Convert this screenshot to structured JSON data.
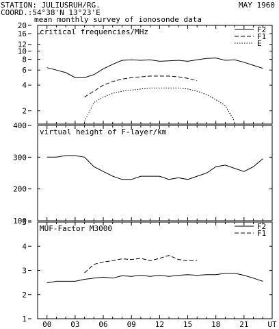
{
  "header": {
    "station": "STATION: JULIUSRUH/RG.",
    "date": "MAY 1960",
    "coord": "COORD.:54°38'N 13°23'E",
    "subtitle": "mean monthly survey of ionosonde data"
  },
  "chart_data": [
    {
      "type": "line",
      "title": "critical frequencies/MHz",
      "yscale": "log",
      "ylim": [
        1.4,
        20
      ],
      "xlim": [
        -1,
        24
      ],
      "yticks": [
        "20",
        "16",
        "12",
        "10",
        "8",
        "6",
        "4",
        "2"
      ],
      "ytick_values": [
        20,
        16,
        12,
        10,
        8,
        6,
        4,
        2
      ],
      "legend_position": "top-right",
      "series": [
        {
          "name": "F2",
          "style": "solid",
          "x": [
            0,
            1,
            2,
            3,
            4,
            5,
            6,
            7,
            8,
            9,
            10,
            11,
            12,
            13,
            14,
            15,
            16,
            17,
            18,
            19,
            20,
            21,
            22,
            23
          ],
          "y": [
            6.4,
            6.0,
            5.6,
            4.9,
            4.9,
            5.3,
            6.2,
            7.0,
            7.8,
            7.9,
            7.8,
            7.9,
            7.6,
            7.7,
            7.8,
            7.6,
            7.9,
            8.2,
            8.3,
            7.8,
            7.9,
            7.4,
            6.8,
            6.3
          ]
        },
        {
          "name": "F1",
          "style": "dashed",
          "x": [
            4,
            5,
            6,
            7,
            8,
            9,
            10,
            11,
            12,
            13,
            14,
            15,
            16
          ],
          "y": [
            2.9,
            3.4,
            4.0,
            4.4,
            4.7,
            4.9,
            5.0,
            5.1,
            5.1,
            5.1,
            5.0,
            4.8,
            4.5
          ]
        },
        {
          "name": "E",
          "style": "dotted",
          "x": [
            4,
            5,
            6,
            7,
            8,
            9,
            10,
            11,
            12,
            13,
            14,
            15,
            16,
            17,
            18,
            19,
            20
          ],
          "y": [
            1.5,
            2.5,
            2.9,
            3.2,
            3.4,
            3.5,
            3.6,
            3.7,
            3.7,
            3.7,
            3.7,
            3.6,
            3.4,
            3.1,
            2.7,
            2.3,
            1.5
          ]
        }
      ]
    },
    {
      "type": "line",
      "title": "virtual height of F-layer/km",
      "ylim": [
        100,
        400
      ],
      "xlim": [
        -1,
        24
      ],
      "yticks": [
        "400",
        "300",
        "200",
        "100"
      ],
      "ytick_values": [
        400,
        300,
        200,
        100
      ],
      "series": [
        {
          "style": "solid",
          "x": [
            0,
            1,
            2,
            3,
            4,
            5,
            6,
            7,
            8,
            9,
            10,
            11,
            12,
            13,
            14,
            15,
            16,
            17,
            18,
            19,
            20,
            21,
            22,
            23
          ],
          "y": [
            300,
            300,
            305,
            305,
            300,
            270,
            255,
            240,
            230,
            230,
            240,
            240,
            240,
            230,
            235,
            230,
            240,
            250,
            270,
            275,
            265,
            255,
            270,
            295
          ]
        }
      ]
    },
    {
      "type": "line",
      "title": "MUF-Factor M3000",
      "ylim": [
        1,
        5
      ],
      "xlim": [
        -1,
        24
      ],
      "yticks": [
        "5",
        "4",
        "3",
        "2",
        "1"
      ],
      "ytick_values": [
        5,
        4,
        3,
        2,
        1
      ],
      "xticks": [
        "00",
        "03",
        "06",
        "09",
        "12",
        "15",
        "18",
        "21",
        "UT"
      ],
      "legend_position": "top-right",
      "series": [
        {
          "name": "F2",
          "style": "solid",
          "x": [
            0,
            1,
            2,
            3,
            4,
            5,
            6,
            7,
            8,
            9,
            10,
            11,
            12,
            13,
            14,
            15,
            16,
            17,
            18,
            19,
            20,
            21,
            22,
            23
          ],
          "y": [
            2.48,
            2.55,
            2.55,
            2.55,
            2.63,
            2.68,
            2.72,
            2.68,
            2.78,
            2.75,
            2.8,
            2.75,
            2.8,
            2.75,
            2.8,
            2.82,
            2.8,
            2.82,
            2.82,
            2.88,
            2.88,
            2.8,
            2.68,
            2.55
          ]
        },
        {
          "name": "F1",
          "style": "dashed",
          "x": [
            4,
            5,
            6,
            7,
            8,
            9,
            10,
            11,
            12,
            13,
            14,
            15,
            16
          ],
          "y": [
            2.9,
            3.25,
            3.35,
            3.4,
            3.48,
            3.45,
            3.5,
            3.4,
            3.5,
            3.62,
            3.45,
            3.4,
            3.42
          ]
        }
      ]
    }
  ]
}
